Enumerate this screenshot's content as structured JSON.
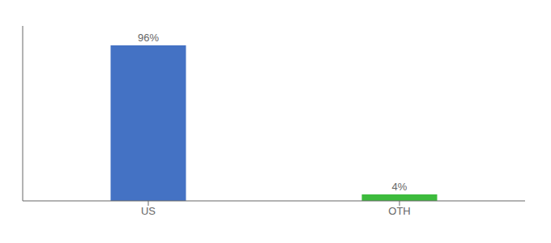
{
  "chart_data": {
    "type": "bar",
    "categories": [
      "US",
      "OTH"
    ],
    "values": [
      96,
      4
    ],
    "value_labels": [
      "96%",
      "4%"
    ],
    "colors": [
      "#4472c4",
      "#3dbb3d"
    ],
    "ylim": [
      0,
      108
    ],
    "data_labels": true,
    "tick_labels": "x",
    "grid": false
  }
}
